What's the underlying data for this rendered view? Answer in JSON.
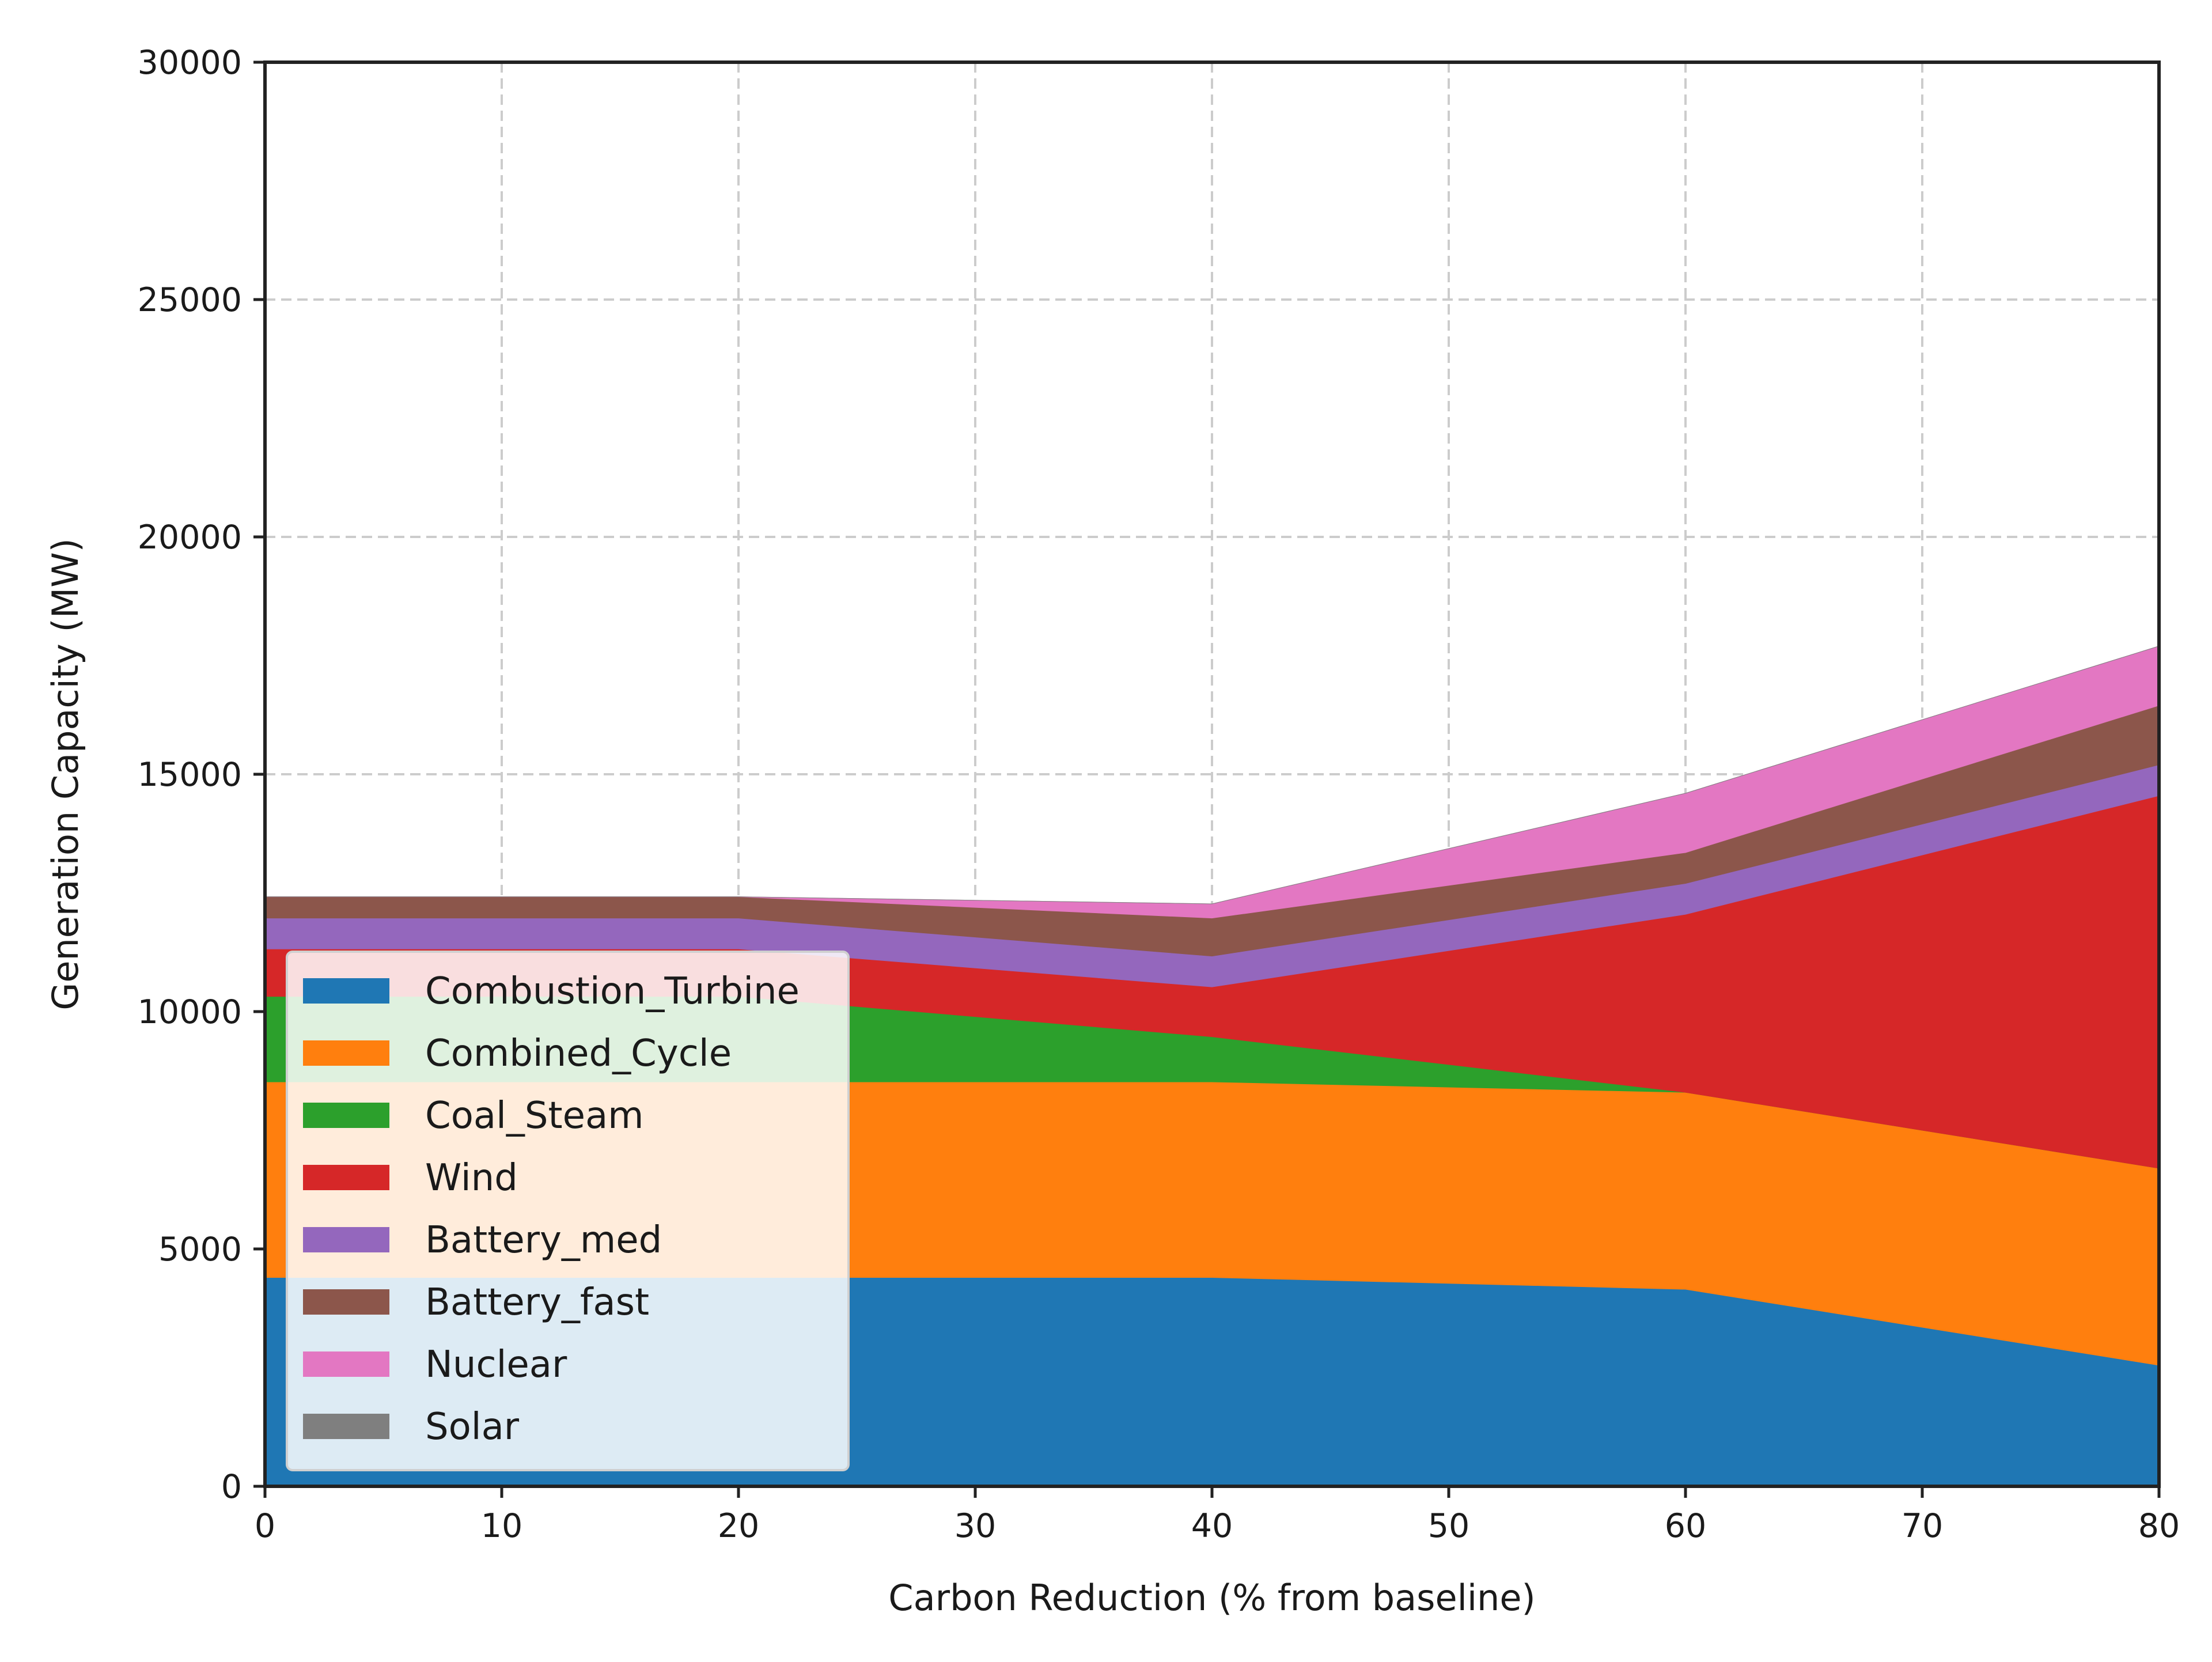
{
  "chart_data": {
    "type": "area",
    "stacked": true,
    "title": "",
    "xlabel": "Carbon Reduction (% from baseline)",
    "ylabel": "Generation Capacity (MW)",
    "xlim": [
      0,
      80
    ],
    "ylim": [
      0,
      30000
    ],
    "xticks": [
      "0",
      "10",
      "20",
      "30",
      "40",
      "50",
      "60",
      "70",
      "80"
    ],
    "yticks": [
      "0",
      "5000",
      "10000",
      "15000",
      "20000",
      "25000",
      "30000"
    ],
    "grid": true,
    "legend_position": "lower-left",
    "x": [
      0,
      20,
      40,
      60,
      80
    ],
    "series": [
      {
        "name": "Combustion_Turbine",
        "color": "#1f77b4",
        "values": [
          4400,
          4400,
          4400,
          4150,
          2550
        ]
      },
      {
        "name": "Combined_Cycle",
        "color": "#ff7f0e",
        "values": [
          4120,
          4120,
          4120,
          4150,
          4150
        ]
      },
      {
        "name": "Coal_Steam",
        "color": "#2ca02c",
        "values": [
          1800,
          1800,
          950,
          0,
          0
        ]
      },
      {
        "name": "Wind",
        "color": "#d62728",
        "values": [
          1000,
          1000,
          1050,
          3750,
          7850
        ]
      },
      {
        "name": "Battery_med",
        "color": "#9467bd",
        "values": [
          650,
          650,
          650,
          650,
          650
        ]
      },
      {
        "name": "Battery_fast",
        "color": "#8c564b",
        "values": [
          450,
          450,
          800,
          650,
          1250
        ]
      },
      {
        "name": "Nuclear",
        "color": "#e377c2",
        "values": [
          0,
          0,
          300,
          1250,
          1250
        ]
      },
      {
        "name": "Solar",
        "color": "#7f7f7f",
        "values": [
          0,
          0,
          0,
          0,
          0
        ]
      }
    ]
  }
}
